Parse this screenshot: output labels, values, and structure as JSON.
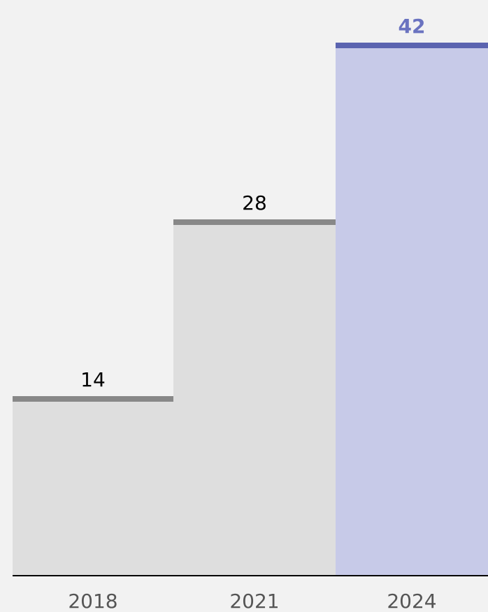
{
  "chart_data": {
    "type": "bar",
    "categories": [
      "2018",
      "2021",
      "2024"
    ],
    "values": [
      14,
      28,
      42
    ],
    "colors": [
      "#dedede",
      "#dedede",
      "#c7cae8"
    ],
    "line_colors": [
      "#888888",
      "#888888",
      "#5b64b0"
    ],
    "label_colors": [
      "#000000",
      "#000000",
      "#6a73c0"
    ],
    "highlight": 2
  }
}
